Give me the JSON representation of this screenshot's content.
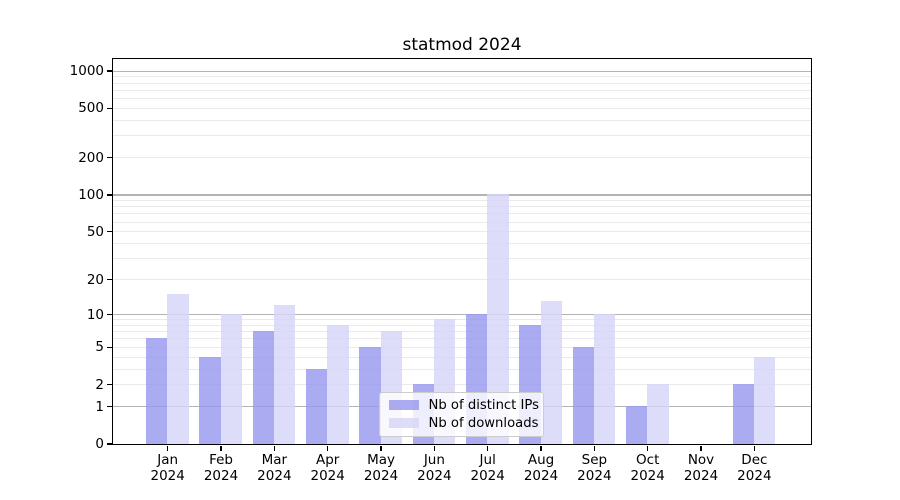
{
  "chart_data": {
    "type": "bar",
    "title": "statmod 2024",
    "categories": [
      "Jan",
      "Feb",
      "Mar",
      "Apr",
      "May",
      "Jun",
      "Jul",
      "Aug",
      "Sep",
      "Oct",
      "Nov",
      "Dec"
    ],
    "category_year": "2024",
    "series": [
      {
        "name": "Nb of distinct IPs",
        "color": "#9898ee",
        "values": [
          6,
          4,
          7,
          3,
          5,
          2,
          10,
          8,
          5,
          1,
          0,
          2
        ]
      },
      {
        "name": "Nb of downloads",
        "color": "#d6d6f8",
        "values": [
          15,
          10,
          12,
          8,
          7,
          9,
          100,
          13,
          10,
          2,
          0,
          4
        ]
      }
    ],
    "xlabel": "",
    "ylabel": "",
    "y_scale": "log1p",
    "y_tick_labels": [
      "0",
      "1",
      "2",
      "5",
      "10",
      "20",
      "50",
      "100",
      "200",
      "500",
      "1000"
    ],
    "y_tick_values": [
      0,
      1,
      2,
      5,
      10,
      20,
      50,
      100,
      200,
      500,
      1000
    ],
    "y_major_gridlines": [
      1,
      10,
      100,
      1000
    ],
    "y_minor_gridlines": [
      2,
      3,
      4,
      5,
      6,
      7,
      8,
      9,
      20,
      30,
      40,
      50,
      60,
      70,
      80,
      90,
      200,
      300,
      400,
      500,
      600,
      700,
      800,
      900
    ],
    "ylim": [
      0,
      1270
    ],
    "grid": true,
    "legend_position": "lower center",
    "colors": {
      "major_grid": "#b3b3b3",
      "minor_grid": "#eaeaea",
      "axis": "#000000",
      "text": "#000000",
      "legend_border": "#cccccc"
    }
  }
}
